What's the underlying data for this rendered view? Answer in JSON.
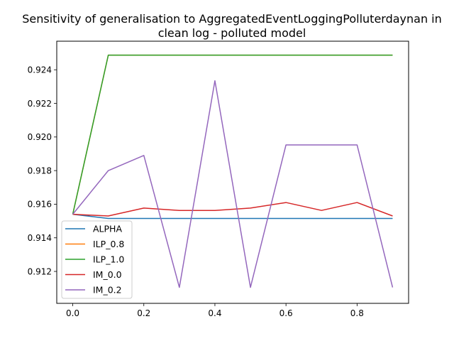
{
  "chart_data": {
    "type": "line",
    "title": "Sensitivity of generalisation to AggregatedEventLoggingPolluterdaynan in\nclean log - polluted model",
    "xlabel": "",
    "ylabel": "",
    "x": [
      0.0,
      0.1,
      0.2,
      0.3,
      0.4,
      0.5,
      0.6,
      0.7,
      0.8,
      0.9
    ],
    "xlim": [
      -0.045,
      0.945
    ],
    "ylim": [
      0.9101,
      0.9257
    ],
    "xticks": [
      0.0,
      0.2,
      0.4,
      0.6,
      0.8
    ],
    "xtick_labels": [
      "0.0",
      "0.2",
      "0.4",
      "0.6",
      "0.8"
    ],
    "yticks": [
      0.912,
      0.914,
      0.916,
      0.918,
      0.92,
      0.922,
      0.924
    ],
    "ytick_labels": [
      "0.912",
      "0.914",
      "0.916",
      "0.918",
      "0.920",
      "0.922",
      "0.924"
    ],
    "grid": false,
    "legend_position": "lower-left",
    "series": [
      {
        "name": "ALPHA",
        "color": "#1f77b4",
        "values": [
          0.9154,
          0.91515,
          0.91515,
          0.91515,
          0.91515,
          0.91515,
          0.91515,
          0.91515,
          0.91515,
          0.91515
        ]
      },
      {
        "name": "ILP_0.8",
        "color": "#ff7f0e",
        "values": [
          0.9154,
          0.92487,
          0.92487,
          0.92487,
          0.92487,
          0.92487,
          0.92487,
          0.92487,
          0.92487,
          0.92487
        ]
      },
      {
        "name": "ILP_1.0",
        "color": "#2ca02c",
        "values": [
          0.9154,
          0.92487,
          0.92487,
          0.92487,
          0.92487,
          0.92487,
          0.92487,
          0.92487,
          0.92487,
          0.92487
        ]
      },
      {
        "name": "IM_0.0",
        "color": "#d62728",
        "values": [
          0.9154,
          0.9153,
          0.91577,
          0.91563,
          0.91563,
          0.91577,
          0.9161,
          0.91563,
          0.9161,
          0.9153
        ]
      },
      {
        "name": "IM_0.2",
        "color": "#9467bd",
        "values": [
          0.9154,
          0.918,
          0.9189,
          0.91105,
          0.92335,
          0.91105,
          0.91953,
          0.91953,
          0.91953,
          0.91105
        ]
      }
    ]
  }
}
